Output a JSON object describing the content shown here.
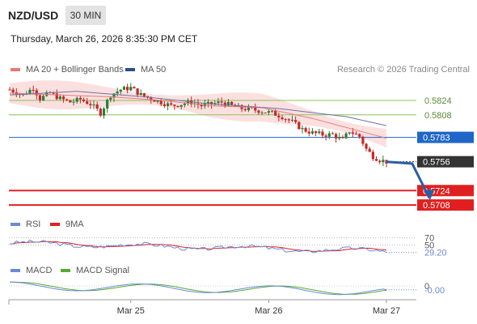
{
  "header": {
    "symbol": "NZD/USD",
    "timeframe": "30 MIN",
    "datetime": "Thursday, March 26, 2026 8:35:30 PM CET",
    "credit": "Research © 2026 Trading Central"
  },
  "legend": {
    "ma20": "MA 20 + Bollinger Bands",
    "ma50": "MA 50",
    "rsi": "RSI",
    "rsi_ma": "9MA",
    "macd": "MACD",
    "macd_signal": "MACD Signal"
  },
  "colors": {
    "ma20": "#e87878",
    "bands": "#fbd5d5",
    "ma50": "#6a74a8",
    "resistance": "#8cc060",
    "pivot": "#1f66c8",
    "support": "#e02020",
    "candle_up": "#2e7d32",
    "candle_down": "#c62828",
    "rsi": "#6a8ad8",
    "rsi_ma": "#e02020",
    "macd": "#6a8ad8",
    "macd_signal": "#55aa33",
    "last_price_box": "#333333"
  },
  "chart_data": {
    "type": "line",
    "price": {
      "ylim": [
        0.57,
        0.585
      ],
      "levels": [
        {
          "label": "0.5824",
          "value": 0.5824,
          "kind": "resistance"
        },
        {
          "label": "0.5808",
          "value": 0.5808,
          "kind": "resistance"
        },
        {
          "label": "0.5783",
          "value": 0.5783,
          "kind": "pivot"
        },
        {
          "label": "0.5724",
          "value": 0.5724,
          "kind": "support"
        },
        {
          "label": "0.5708",
          "value": 0.5708,
          "kind": "support"
        }
      ],
      "last_price": {
        "label": "0.5756",
        "value": 0.5756
      },
      "close_path": [
        {
          "x": 0,
          "y": 0.5836
        },
        {
          "x": 4,
          "y": 0.583
        },
        {
          "x": 7,
          "y": 0.5838
        },
        {
          "x": 9,
          "y": 0.5826
        },
        {
          "x": 12,
          "y": 0.5832
        },
        {
          "x": 15,
          "y": 0.5826
        },
        {
          "x": 18,
          "y": 0.5822
        },
        {
          "x": 21,
          "y": 0.5825
        },
        {
          "x": 24,
          "y": 0.582
        },
        {
          "x": 27,
          "y": 0.581
        },
        {
          "x": 30,
          "y": 0.583
        },
        {
          "x": 33,
          "y": 0.5836
        },
        {
          "x": 36,
          "y": 0.5838
        },
        {
          "x": 39,
          "y": 0.583
        },
        {
          "x": 42,
          "y": 0.5826
        },
        {
          "x": 45,
          "y": 0.5822
        },
        {
          "x": 48,
          "y": 0.5818
        },
        {
          "x": 51,
          "y": 0.582
        },
        {
          "x": 54,
          "y": 0.5822
        },
        {
          "x": 57,
          "y": 0.5818
        },
        {
          "x": 60,
          "y": 0.582
        },
        {
          "x": 63,
          "y": 0.5822
        },
        {
          "x": 66,
          "y": 0.5818
        },
        {
          "x": 69,
          "y": 0.5815
        },
        {
          "x": 72,
          "y": 0.5814
        },
        {
          "x": 75,
          "y": 0.5812
        },
        {
          "x": 78,
          "y": 0.581
        },
        {
          "x": 81,
          "y": 0.5806
        },
        {
          "x": 84,
          "y": 0.58
        },
        {
          "x": 87,
          "y": 0.5792
        },
        {
          "x": 90,
          "y": 0.5788
        },
        {
          "x": 93,
          "y": 0.5786
        },
        {
          "x": 96,
          "y": 0.5786
        },
        {
          "x": 99,
          "y": 0.578
        },
        {
          "x": 101,
          "y": 0.579
        },
        {
          "x": 104,
          "y": 0.5784
        },
        {
          "x": 106,
          "y": 0.577
        },
        {
          "x": 108,
          "y": 0.5762
        },
        {
          "x": 110,
          "y": 0.5758
        },
        {
          "x": 112,
          "y": 0.5756
        }
      ],
      "ma50_path": [
        {
          "x": 0,
          "y": 0.583
        },
        {
          "x": 20,
          "y": 0.5834
        },
        {
          "x": 40,
          "y": 0.5828
        },
        {
          "x": 60,
          "y": 0.582
        },
        {
          "x": 80,
          "y": 0.5815
        },
        {
          "x": 100,
          "y": 0.5806
        },
        {
          "x": 112,
          "y": 0.5796
        }
      ],
      "ma20_path": [
        {
          "x": 0,
          "y": 0.5832
        },
        {
          "x": 15,
          "y": 0.583
        },
        {
          "x": 30,
          "y": 0.5828
        },
        {
          "x": 45,
          "y": 0.5824
        },
        {
          "x": 60,
          "y": 0.5818
        },
        {
          "x": 75,
          "y": 0.5816
        },
        {
          "x": 90,
          "y": 0.5804
        },
        {
          "x": 100,
          "y": 0.5794
        },
        {
          "x": 112,
          "y": 0.5782
        }
      ],
      "forecast_arrow": [
        {
          "x": 112,
          "y": 0.5756
        },
        {
          "x": 118,
          "y": 0.5754
        },
        {
          "x": 122,
          "y": 0.5716
        }
      ]
    },
    "rsi": {
      "ylim": [
        15,
        85
      ],
      "ticks": [
        {
          "label": "70",
          "value": 70
        },
        {
          "label": "50",
          "value": 50
        }
      ],
      "last": {
        "label": "29.20",
        "value": 29.2
      }
    },
    "macd": {
      "ticks": [
        {
          "label": "0",
          "value": 0
        }
      ],
      "last": {
        "label": "-0.00",
        "value": -0.0004
      }
    },
    "x_ticks": [
      {
        "label": "Mar 25",
        "x": 36
      },
      {
        "label": "Mar 26",
        "x": 77
      },
      {
        "label": "Mar 27",
        "x": 112
      }
    ]
  }
}
